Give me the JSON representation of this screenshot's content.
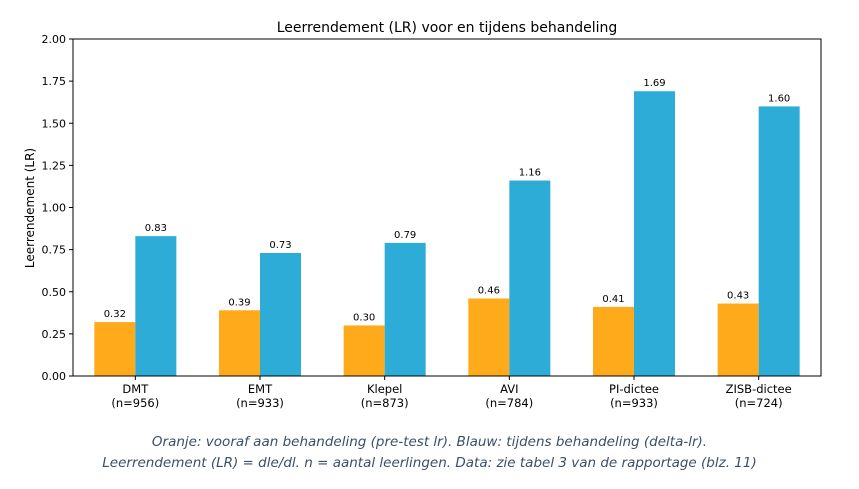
{
  "chart_data": {
    "type": "bar",
    "title": "Leerrendement (LR) voor en tijdens behandeling",
    "xlabel": "",
    "ylabel": "Leerrendement (LR)",
    "ylim": [
      0,
      2.0
    ],
    "yticks": [
      "0.00",
      "0.25",
      "0.50",
      "0.75",
      "1.00",
      "1.25",
      "1.50",
      "1.75",
      "2.00"
    ],
    "grid": false,
    "categories": [
      {
        "name": "DMT",
        "n": "(n=956)"
      },
      {
        "name": "EMT",
        "n": "(n=933)"
      },
      {
        "name": "Klepel",
        "n": "(n=873)"
      },
      {
        "name": "AVI",
        "n": "(n=784)"
      },
      {
        "name": "PI-dictee",
        "n": "(n=933)"
      },
      {
        "name": "ZISB-dictee",
        "n": "(n=724)"
      }
    ],
    "series": [
      {
        "color": "#FFAA1A",
        "values": [
          0.32,
          0.39,
          0.3,
          0.46,
          0.41,
          0.43
        ],
        "labels": [
          "0.32",
          "0.39",
          "0.30",
          "0.46",
          "0.41",
          "0.43"
        ]
      },
      {
        "color": "#2EACD8",
        "values": [
          0.83,
          0.73,
          0.79,
          1.16,
          1.69,
          1.6
        ],
        "labels": [
          "0.83",
          "0.73",
          "0.79",
          "1.16",
          "1.69",
          "1.60"
        ]
      }
    ]
  },
  "captions": {
    "line1": "Oranje: vooraf aan behandeling (pre-test lr). Blauw: tijdens behandeling (delta-lr).",
    "line2": "Leerrendement (LR) = dle/dl. n = aantal leerlingen. Data: zie tabel 3 van de rapportage (blz. 11)"
  }
}
